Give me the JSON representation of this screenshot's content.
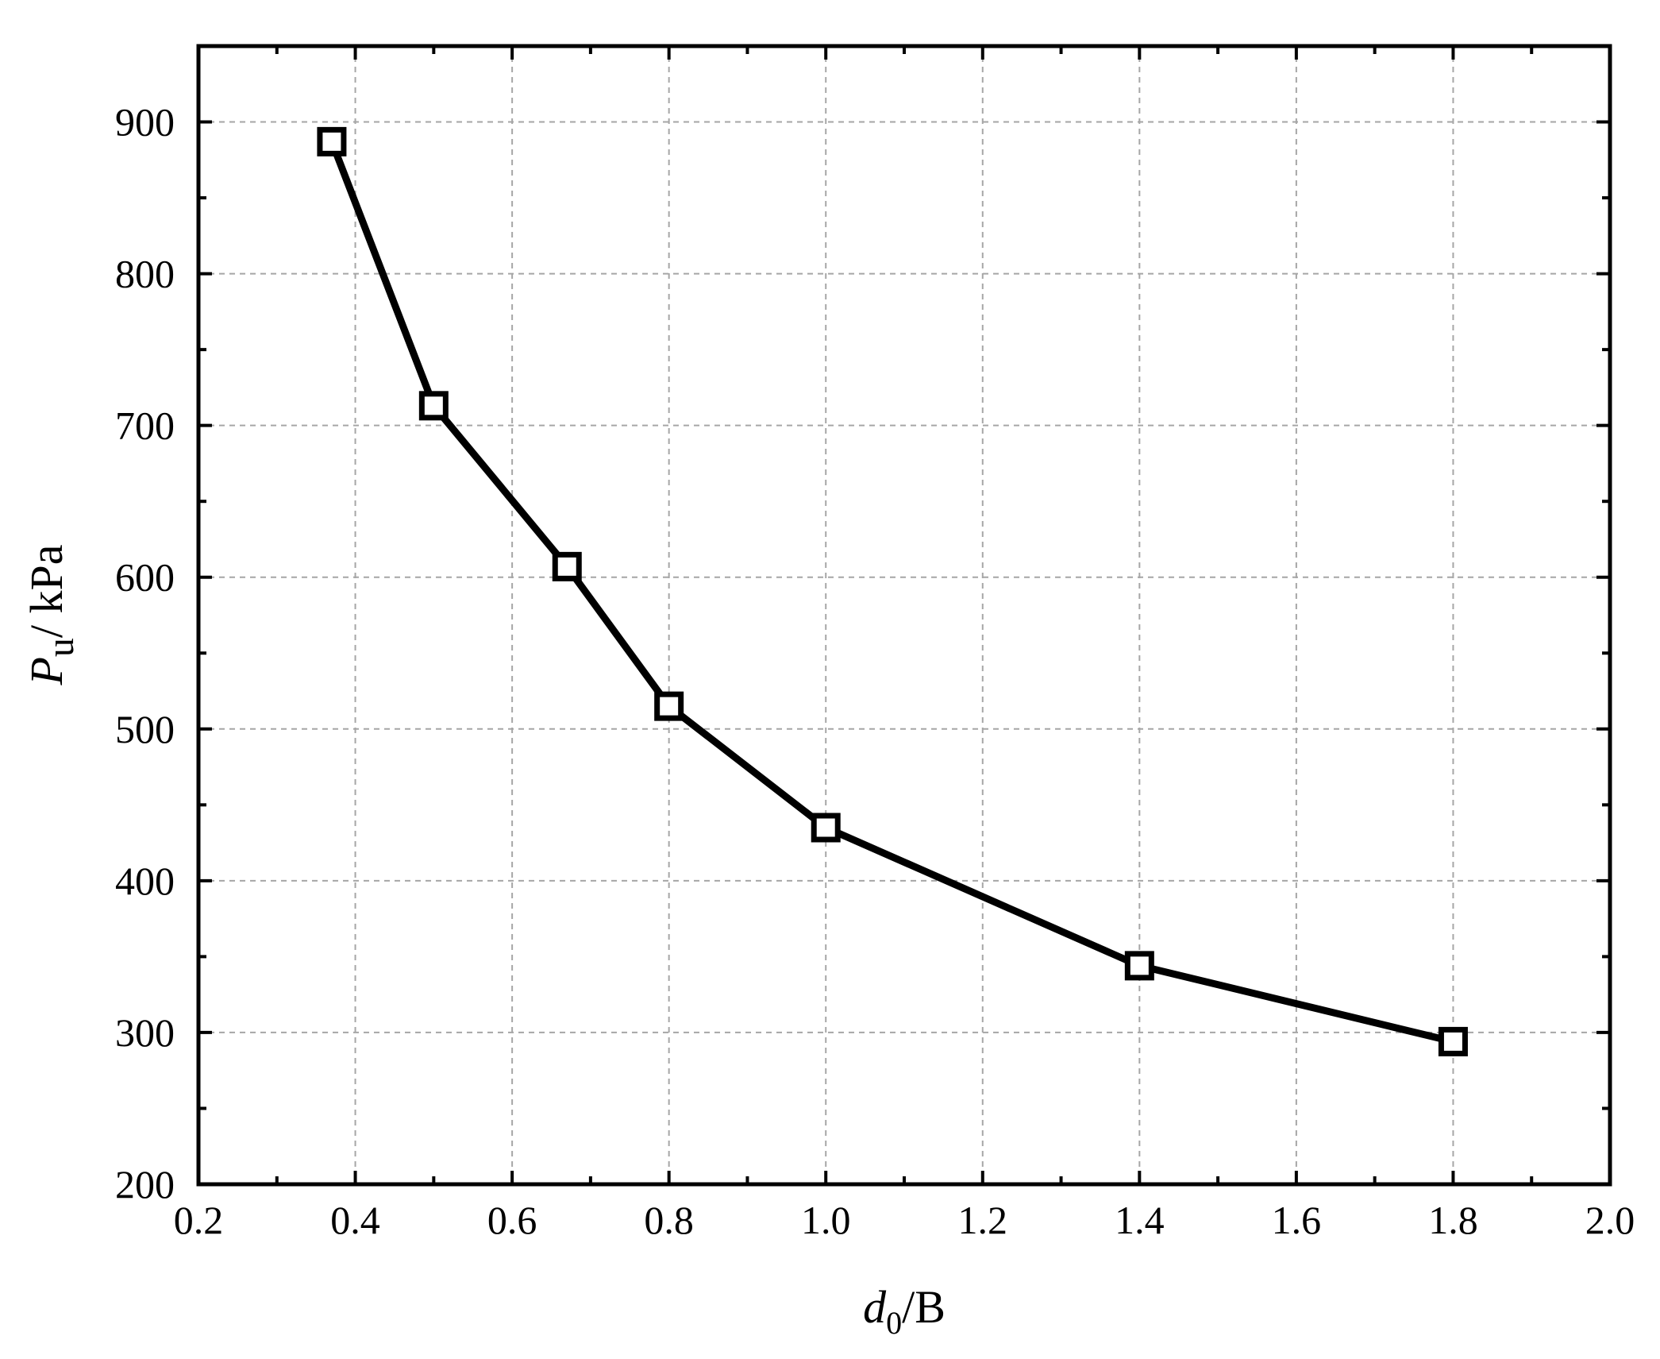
{
  "chart_data": {
    "type": "line",
    "xlabel": {
      "main": "d",
      "sub": "0",
      "suffix": "/B"
    },
    "ylabel": {
      "main": "P",
      "sub": "u",
      "suffix": "/ kPa"
    },
    "xlim": [
      0.2,
      2.0
    ],
    "ylim": [
      200,
      950
    ],
    "x_ticks": [
      0.2,
      0.4,
      0.6,
      0.8,
      1.0,
      1.2,
      1.4,
      1.6,
      1.8,
      2.0
    ],
    "x_tick_labels": [
      "0.2",
      "0.4",
      "0.6",
      "0.8",
      "1.0",
      "1.2",
      "1.4",
      "1.6",
      "1.8",
      "2.0"
    ],
    "y_ticks": [
      200,
      300,
      400,
      500,
      600,
      700,
      800,
      900
    ],
    "y_tick_labels": [
      "200",
      "300",
      "400",
      "500",
      "600",
      "700",
      "800",
      "900"
    ],
    "grid": true,
    "marker": "open-square",
    "series": [
      {
        "x": [
          0.37,
          0.5,
          0.67,
          0.8,
          1.0,
          1.4,
          1.8
        ],
        "y": [
          887,
          713,
          607,
          515,
          435,
          344,
          294
        ]
      }
    ]
  }
}
